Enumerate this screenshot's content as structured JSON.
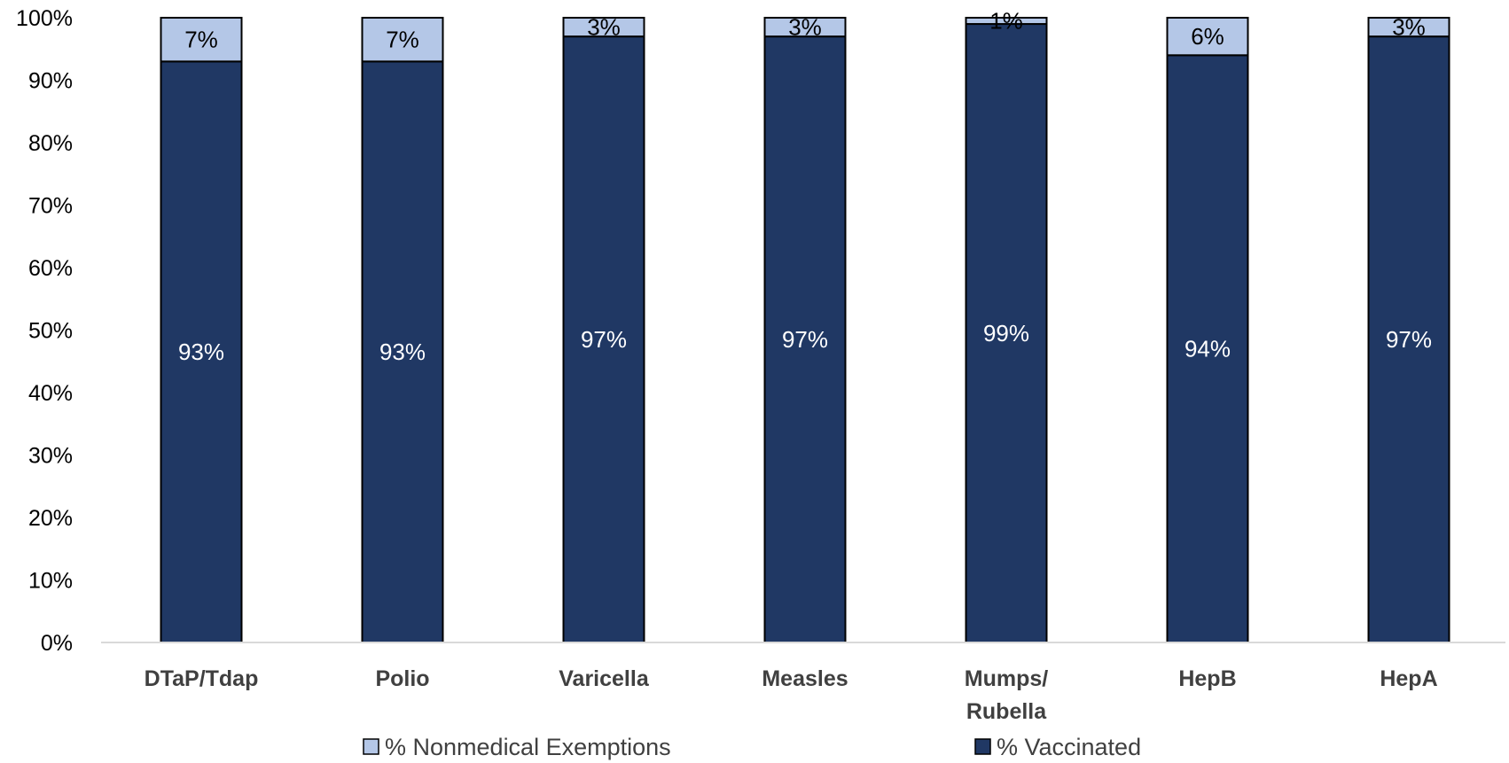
{
  "chart_data": {
    "type": "bar",
    "stacked": true,
    "percent_stacked": true,
    "categories": [
      "DTaP/Tdap",
      "Polio",
      "Varicella",
      "Measles",
      "Mumps/ Rubella",
      "HepB",
      "HepA"
    ],
    "category_lines": [
      [
        "DTaP/Tdap"
      ],
      [
        "Polio"
      ],
      [
        "Varicella"
      ],
      [
        "Measles"
      ],
      [
        "Mumps/",
        "Rubella"
      ],
      [
        "HepB"
      ],
      [
        "HepA"
      ]
    ],
    "series": [
      {
        "name": "% Vaccinated",
        "values": [
          93,
          93,
          97,
          97,
          99,
          94,
          97
        ],
        "labels": [
          "93%",
          "93%",
          "97%",
          "97%",
          "99%",
          "94%",
          "97%"
        ],
        "color": "#203864",
        "label_color": "#ffffff"
      },
      {
        "name": "% Nonmedical Exemptions",
        "values": [
          7,
          7,
          3,
          3,
          1,
          6,
          3
        ],
        "labels": [
          "7%",
          "7%",
          "3%",
          "3%",
          "1%",
          "6%",
          "3%"
        ],
        "color": "#b4c7e7",
        "label_color": "#000000"
      }
    ],
    "ylim": [
      0,
      100
    ],
    "y_ticks": [
      "0%",
      "10%",
      "20%",
      "30%",
      "40%",
      "50%",
      "60%",
      "70%",
      "80%",
      "90%",
      "100%"
    ],
    "grid": false,
    "legend": {
      "position": "bottom",
      "order": [
        "% Nonmedical Exemptions",
        "% Vaccinated"
      ]
    },
    "bar_outline_color": "#000000",
    "axis_color": "#d9d9d9"
  }
}
